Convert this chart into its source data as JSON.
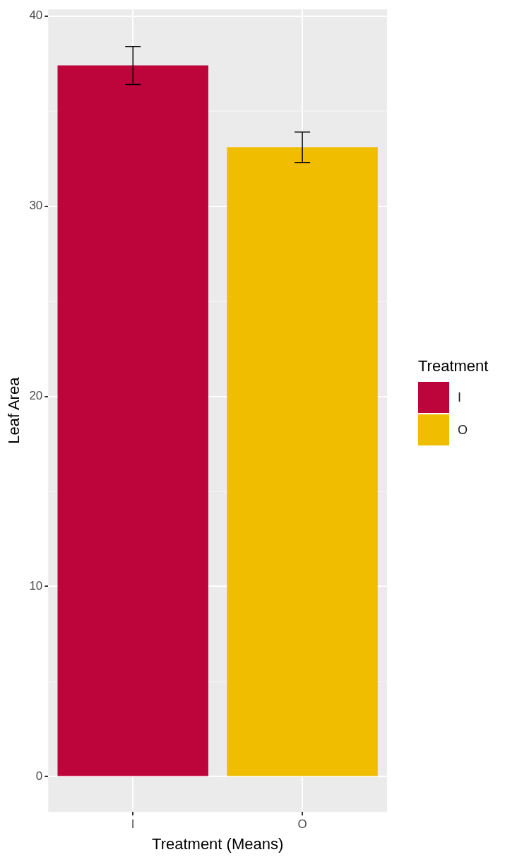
{
  "chart_data": {
    "type": "bar",
    "xlabel": "Treatment (Means)",
    "ylabel": "Leaf Area",
    "legend_title": "Treatment",
    "categories": [
      "I",
      "O"
    ],
    "series": [
      {
        "name": "I",
        "color": "#bd043b",
        "values": [
          37.4,
          null
        ],
        "errors": [
          [
            36.4,
            38.4
          ],
          null
        ]
      },
      {
        "name": "O",
        "color": "#f0bd00",
        "values": [
          null,
          33.1
        ],
        "errors": [
          null,
          [
            32.3,
            33.9
          ]
        ]
      }
    ],
    "ylim": [
      -1.85,
      40.35
    ],
    "yticks": [
      0,
      10,
      20,
      30,
      40
    ],
    "grid": true,
    "legend": "right"
  }
}
